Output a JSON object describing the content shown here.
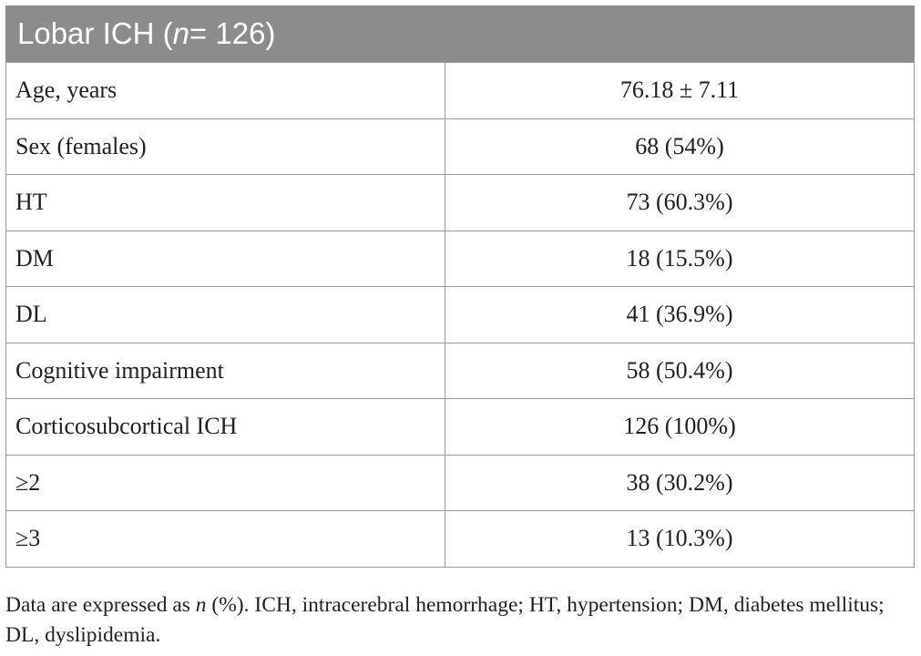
{
  "table": {
    "title_prefix": "Lobar ICH (",
    "title_n": "n",
    "title_suffix": " = 126)",
    "rows": [
      {
        "label": "Age, years",
        "value": "76.18 ± 7.11"
      },
      {
        "label": "Sex (females)",
        "value": "68 (54%)"
      },
      {
        "label": "HT",
        "value": "73 (60.3%)"
      },
      {
        "label": "DM",
        "value": "18 (15.5%)"
      },
      {
        "label": "DL",
        "value": "41 (36.9%)"
      },
      {
        "label": "Cognitive impairment",
        "value": "58 (50.4%)"
      },
      {
        "label": "Corticosubcortical ICH",
        "value": "126 (100%)"
      },
      {
        "label": "≥2",
        "value": "38 (30.2%)"
      },
      {
        "label": "≥3",
        "value": "13 (10.3%)"
      }
    ]
  },
  "footnote": {
    "prefix": "Data are expressed as ",
    "n": "n",
    "rest": " (%). ICH, intracerebral hemorrhage; HT, hypertension; DM, diabetes mellitus; DL, dyslipidemia."
  },
  "colors": {
    "header_bg": "#8c8c8c",
    "border": "#9a9a9a",
    "text": "#231f20"
  }
}
